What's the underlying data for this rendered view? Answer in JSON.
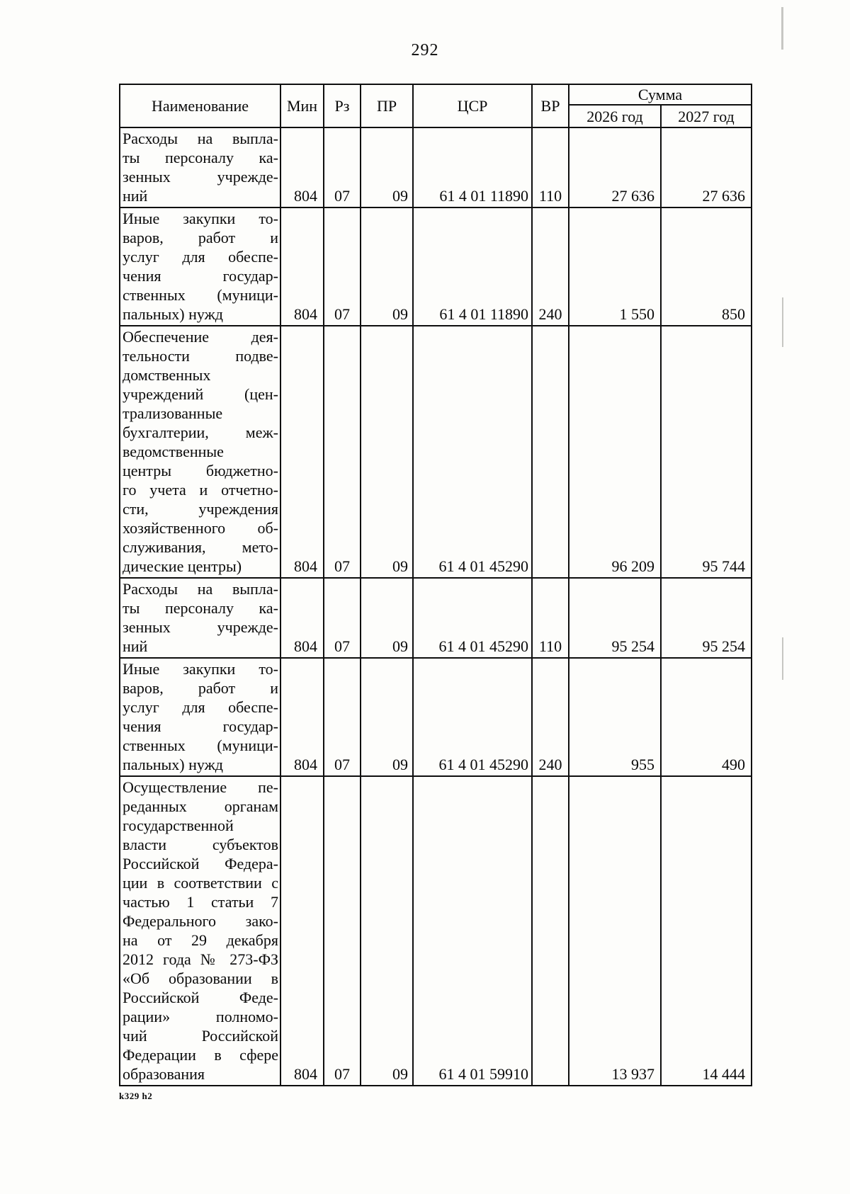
{
  "page": {
    "number": "292",
    "footer_code": "k329 h2"
  },
  "table": {
    "headers": {
      "name": "Наименование",
      "min": "Мин",
      "rz": "Рз",
      "pr": "ПР",
      "csr": "ЦСР",
      "vr": "ВР",
      "sum": "Сумма",
      "y2026": "2026 год",
      "y2027": "2027 год"
    },
    "rows": [
      {
        "name": "Расходы на выпла-\nты персоналу ка-\nзенных учрежде-\nний",
        "min": "804",
        "rz": "07",
        "pr": "09",
        "csr": "61 4 01 11890",
        "vr": "110",
        "y2026": "27 636",
        "y2027": "27 636"
      },
      {
        "name": "Иные закупки то-\nваров, работ и\nуслуг для обеспе-\nчения государ-\nственных (муници-\nпальных) нужд",
        "min": "804",
        "rz": "07",
        "pr": "09",
        "csr": "61 4 01 11890",
        "vr": "240",
        "y2026": "1 550",
        "y2027": "850"
      },
      {
        "name": "Обеспечение дея-\nтельности подве-\nдомственных\nучреждений (цен-\nтрализованные\nбухгалтерии, меж-\nведомственные\nцентры бюджетно-\nго учета и отчетно-\nсти, учреждения\nхозяйственного об-\nслуживания, мето-\nдические центры)",
        "min": "804",
        "rz": "07",
        "pr": "09",
        "csr": "61 4 01 45290",
        "vr": "",
        "y2026": "96 209",
        "y2027": "95 744"
      },
      {
        "name": "Расходы на выпла-\nты персоналу ка-\nзенных учрежде-\nний",
        "min": "804",
        "rz": "07",
        "pr": "09",
        "csr": "61 4 01 45290",
        "vr": "110",
        "y2026": "95 254",
        "y2027": "95 254"
      },
      {
        "name": "Иные закупки то-\nваров, работ и\nуслуг для обеспе-\nчения государ-\nственных (муници-\nпальных) нужд",
        "min": "804",
        "rz": "07",
        "pr": "09",
        "csr": "61 4 01 45290",
        "vr": "240",
        "y2026": "955",
        "y2027": "490"
      },
      {
        "name": "Осуществление пе-\nреданных органам\nгосударственной\nвласти субъектов\nРоссийской Федера-\nции в соответствии с\nчастью 1 статьи 7\nФедерального зако-\nна от 29 декабря\n2012 года № 273-ФЗ\n«Об образовании в\nРоссийской Феде-\nрации» полномо-\nчий Российской\nФедерации в сфере\nобразования",
        "min": "804",
        "rz": "07",
        "pr": "09",
        "csr": "61 4 01 59910",
        "vr": "",
        "y2026": "13 937",
        "y2027": "14 444"
      }
    ]
  }
}
